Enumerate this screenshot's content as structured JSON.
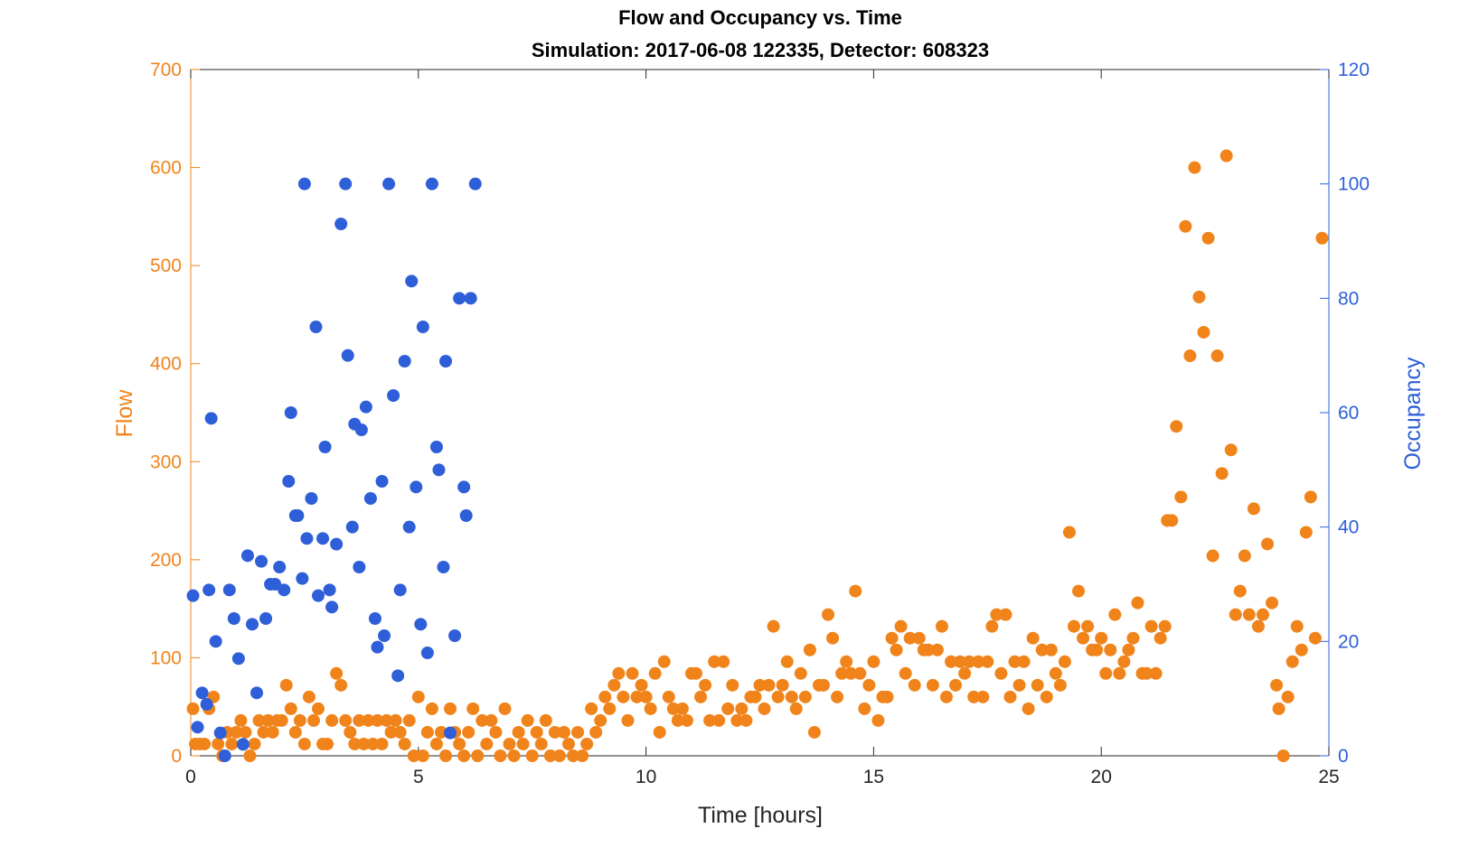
{
  "chart_data": {
    "type": "scatter",
    "title": "Flow and Occupancy vs. Time",
    "subtitle": "Simulation:  2017-06-08 122335,  Detector:  608323",
    "xlabel": "Time [hours]",
    "ylabel_left": "Flow",
    "ylabel_right": "Occupancy",
    "xlim": [
      0,
      25
    ],
    "ylim_left": [
      0,
      700
    ],
    "ylim_right": [
      0,
      120
    ],
    "x_ticks": [
      "0",
      "5",
      "10",
      "15",
      "20",
      "25"
    ],
    "y_left_ticks": [
      "0",
      "100",
      "200",
      "300",
      "400",
      "500",
      "600",
      "700"
    ],
    "y_right_ticks": [
      "0",
      "20",
      "40",
      "60",
      "80",
      "100",
      "120"
    ],
    "grid": false,
    "colors": {
      "flow": "#F0841B",
      "occupancy": "#2E5FD8"
    },
    "series": [
      {
        "axis": "left",
        "points": [
          [
            0.05,
            48
          ],
          [
            0.1,
            12
          ],
          [
            0.2,
            12
          ],
          [
            0.3,
            12
          ],
          [
            0.4,
            48
          ],
          [
            0.5,
            60
          ],
          [
            0.6,
            12
          ],
          [
            0.7,
            0
          ],
          [
            0.8,
            24
          ],
          [
            0.9,
            12
          ],
          [
            1.0,
            24
          ],
          [
            1.1,
            36
          ],
          [
            1.2,
            24
          ],
          [
            1.3,
            0
          ],
          [
            1.4,
            12
          ],
          [
            1.5,
            36
          ],
          [
            1.6,
            24
          ],
          [
            1.7,
            36
          ],
          [
            1.8,
            24
          ],
          [
            1.9,
            36
          ],
          [
            2.0,
            36
          ],
          [
            2.1,
            72
          ],
          [
            2.2,
            48
          ],
          [
            2.3,
            24
          ],
          [
            2.4,
            36
          ],
          [
            2.5,
            12
          ],
          [
            2.6,
            60
          ],
          [
            2.7,
            36
          ],
          [
            2.8,
            48
          ],
          [
            2.9,
            12
          ],
          [
            3.0,
            12
          ],
          [
            3.1,
            36
          ],
          [
            3.2,
            84
          ],
          [
            3.3,
            72
          ],
          [
            3.4,
            36
          ],
          [
            3.5,
            24
          ],
          [
            3.6,
            12
          ],
          [
            3.7,
            36
          ],
          [
            3.8,
            12
          ],
          [
            3.9,
            36
          ],
          [
            4.0,
            12
          ],
          [
            4.1,
            36
          ],
          [
            4.2,
            12
          ],
          [
            4.3,
            36
          ],
          [
            4.4,
            24
          ],
          [
            4.5,
            36
          ],
          [
            4.6,
            24
          ],
          [
            4.7,
            12
          ],
          [
            4.8,
            36
          ],
          [
            4.9,
            0
          ],
          [
            5.0,
            60
          ],
          [
            5.1,
            0
          ],
          [
            5.2,
            24
          ],
          [
            5.3,
            48
          ],
          [
            5.4,
            12
          ],
          [
            5.5,
            24
          ],
          [
            5.6,
            0
          ],
          [
            5.7,
            48
          ],
          [
            5.8,
            24
          ],
          [
            5.9,
            12
          ],
          [
            6.0,
            0
          ],
          [
            6.1,
            24
          ],
          [
            6.2,
            48
          ],
          [
            6.3,
            0
          ],
          [
            6.4,
            36
          ],
          [
            6.5,
            12
          ],
          [
            6.6,
            36
          ],
          [
            6.7,
            24
          ],
          [
            6.8,
            0
          ],
          [
            6.9,
            48
          ],
          [
            7.0,
            12
          ],
          [
            7.1,
            0
          ],
          [
            7.2,
            24
          ],
          [
            7.3,
            12
          ],
          [
            7.4,
            36
          ],
          [
            7.5,
            0
          ],
          [
            7.6,
            24
          ],
          [
            7.7,
            12
          ],
          [
            7.8,
            36
          ],
          [
            7.9,
            0
          ],
          [
            8.0,
            24
          ],
          [
            8.1,
            0
          ],
          [
            8.2,
            24
          ],
          [
            8.3,
            12
          ],
          [
            8.4,
            0
          ],
          [
            8.5,
            24
          ],
          [
            8.6,
            0
          ],
          [
            8.7,
            12
          ],
          [
            8.8,
            48
          ],
          [
            8.9,
            24
          ],
          [
            9.0,
            36
          ],
          [
            9.1,
            60
          ],
          [
            9.2,
            48
          ],
          [
            9.3,
            72
          ],
          [
            9.4,
            84
          ],
          [
            9.5,
            60
          ],
          [
            9.6,
            36
          ],
          [
            9.7,
            84
          ],
          [
            9.8,
            60
          ],
          [
            9.9,
            72
          ],
          [
            10.0,
            60
          ],
          [
            10.1,
            48
          ],
          [
            10.2,
            84
          ],
          [
            10.3,
            24
          ],
          [
            10.4,
            96
          ],
          [
            10.5,
            60
          ],
          [
            10.6,
            48
          ],
          [
            10.7,
            36
          ],
          [
            10.8,
            48
          ],
          [
            10.9,
            36
          ],
          [
            11.0,
            84
          ],
          [
            11.1,
            84
          ],
          [
            11.2,
            60
          ],
          [
            11.3,
            72
          ],
          [
            11.4,
            36
          ],
          [
            11.5,
            96
          ],
          [
            11.6,
            36
          ],
          [
            11.7,
            96
          ],
          [
            11.8,
            48
          ],
          [
            11.9,
            72
          ],
          [
            12.0,
            36
          ],
          [
            12.1,
            48
          ],
          [
            12.2,
            36
          ],
          [
            12.3,
            60
          ],
          [
            12.4,
            60
          ],
          [
            12.5,
            72
          ],
          [
            12.6,
            48
          ],
          [
            12.7,
            72
          ],
          [
            12.8,
            132
          ],
          [
            12.9,
            60
          ],
          [
            13.0,
            72
          ],
          [
            13.1,
            96
          ],
          [
            13.2,
            60
          ],
          [
            13.3,
            48
          ],
          [
            13.4,
            84
          ],
          [
            13.5,
            60
          ],
          [
            13.6,
            108
          ],
          [
            13.7,
            24
          ],
          [
            13.8,
            72
          ],
          [
            13.9,
            72
          ],
          [
            14.0,
            144
          ],
          [
            14.1,
            120
          ],
          [
            14.2,
            60
          ],
          [
            14.3,
            84
          ],
          [
            14.4,
            96
          ],
          [
            14.5,
            84
          ],
          [
            14.6,
            168
          ],
          [
            14.7,
            84
          ],
          [
            14.8,
            48
          ],
          [
            14.9,
            72
          ],
          [
            15.0,
            96
          ],
          [
            15.1,
            36
          ],
          [
            15.2,
            60
          ],
          [
            15.3,
            60
          ],
          [
            15.4,
            120
          ],
          [
            15.5,
            108
          ],
          [
            15.6,
            132
          ],
          [
            15.7,
            84
          ],
          [
            15.8,
            120
          ],
          [
            15.9,
            72
          ],
          [
            16.0,
            120
          ],
          [
            16.1,
            108
          ],
          [
            16.2,
            108
          ],
          [
            16.3,
            72
          ],
          [
            16.4,
            108
          ],
          [
            16.5,
            132
          ],
          [
            16.6,
            60
          ],
          [
            16.7,
            96
          ],
          [
            16.8,
            72
          ],
          [
            16.9,
            96
          ],
          [
            17.0,
            84
          ],
          [
            17.1,
            96
          ],
          [
            17.2,
            60
          ],
          [
            17.3,
            96
          ],
          [
            17.4,
            60
          ],
          [
            17.5,
            96
          ],
          [
            17.6,
            132
          ],
          [
            17.7,
            144
          ],
          [
            17.8,
            84
          ],
          [
            17.9,
            144
          ],
          [
            18.0,
            60
          ],
          [
            18.1,
            96
          ],
          [
            18.2,
            72
          ],
          [
            18.3,
            96
          ],
          [
            18.4,
            48
          ],
          [
            18.5,
            120
          ],
          [
            18.6,
            72
          ],
          [
            18.7,
            108
          ],
          [
            18.8,
            60
          ],
          [
            18.9,
            108
          ],
          [
            19.0,
            84
          ],
          [
            19.1,
            72
          ],
          [
            19.2,
            96
          ],
          [
            19.3,
            228
          ],
          [
            19.4,
            132
          ],
          [
            19.5,
            168
          ],
          [
            19.6,
            120
          ],
          [
            19.7,
            132
          ],
          [
            19.8,
            108
          ],
          [
            19.9,
            108
          ],
          [
            20.0,
            120
          ],
          [
            20.1,
            84
          ],
          [
            20.2,
            108
          ],
          [
            20.3,
            144
          ],
          [
            20.4,
            84
          ],
          [
            20.5,
            96
          ],
          [
            20.6,
            108
          ],
          [
            20.7,
            120
          ],
          [
            20.8,
            156
          ],
          [
            20.9,
            84
          ],
          [
            21.0,
            84
          ],
          [
            21.1,
            132
          ],
          [
            21.2,
            84
          ],
          [
            21.3,
            120
          ],
          [
            21.4,
            132
          ],
          [
            21.45,
            240
          ],
          [
            21.55,
            240
          ],
          [
            21.65,
            336
          ],
          [
            21.75,
            264
          ],
          [
            21.85,
            540
          ],
          [
            21.95,
            408
          ],
          [
            22.05,
            600
          ],
          [
            22.15,
            468
          ],
          [
            22.25,
            432
          ],
          [
            22.35,
            528
          ],
          [
            22.45,
            204
          ],
          [
            22.55,
            408
          ],
          [
            22.65,
            288
          ],
          [
            22.75,
            612
          ],
          [
            22.85,
            312
          ],
          [
            22.95,
            144
          ],
          [
            23.05,
            168
          ],
          [
            23.15,
            204
          ],
          [
            23.25,
            144
          ],
          [
            23.35,
            252
          ],
          [
            23.45,
            132
          ],
          [
            23.55,
            144
          ],
          [
            23.65,
            216
          ],
          [
            23.75,
            156
          ],
          [
            23.85,
            72
          ],
          [
            23.9,
            48
          ],
          [
            24.0,
            0
          ],
          [
            24.1,
            60
          ],
          [
            24.2,
            96
          ],
          [
            24.3,
            132
          ],
          [
            24.4,
            108
          ],
          [
            24.5,
            228
          ],
          [
            24.6,
            264
          ],
          [
            24.7,
            120
          ],
          [
            24.85,
            528
          ]
        ]
      },
      {
        "axis": "right",
        "points": [
          [
            0.05,
            28
          ],
          [
            0.15,
            5
          ],
          [
            0.25,
            11
          ],
          [
            0.35,
            9
          ],
          [
            0.4,
            29
          ],
          [
            0.45,
            59
          ],
          [
            0.55,
            20
          ],
          [
            0.65,
            4
          ],
          [
            0.75,
            0
          ],
          [
            0.85,
            29
          ],
          [
            0.95,
            24
          ],
          [
            1.05,
            17
          ],
          [
            1.15,
            2
          ],
          [
            1.25,
            35
          ],
          [
            1.35,
            23
          ],
          [
            1.45,
            11
          ],
          [
            1.55,
            34
          ],
          [
            1.65,
            24
          ],
          [
            1.75,
            30
          ],
          [
            1.85,
            30
          ],
          [
            1.95,
            33
          ],
          [
            2.05,
            29
          ],
          [
            2.15,
            48
          ],
          [
            2.2,
            60
          ],
          [
            2.3,
            42
          ],
          [
            2.35,
            42
          ],
          [
            2.45,
            31
          ],
          [
            2.5,
            100
          ],
          [
            2.55,
            38
          ],
          [
            2.65,
            45
          ],
          [
            2.75,
            75
          ],
          [
            2.8,
            28
          ],
          [
            2.9,
            38
          ],
          [
            2.95,
            54
          ],
          [
            3.05,
            29
          ],
          [
            3.1,
            26
          ],
          [
            3.2,
            37
          ],
          [
            3.3,
            93
          ],
          [
            3.4,
            100
          ],
          [
            3.45,
            70
          ],
          [
            3.55,
            40
          ],
          [
            3.6,
            58
          ],
          [
            3.7,
            33
          ],
          [
            3.75,
            57
          ],
          [
            3.85,
            61
          ],
          [
            3.95,
            45
          ],
          [
            4.05,
            24
          ],
          [
            4.1,
            19
          ],
          [
            4.2,
            48
          ],
          [
            4.25,
            21
          ],
          [
            4.35,
            100
          ],
          [
            4.45,
            63
          ],
          [
            4.55,
            14
          ],
          [
            4.6,
            29
          ],
          [
            4.7,
            69
          ],
          [
            4.8,
            40
          ],
          [
            4.85,
            83
          ],
          [
            4.95,
            47
          ],
          [
            5.05,
            23
          ],
          [
            5.1,
            75
          ],
          [
            5.2,
            18
          ],
          [
            5.3,
            100
          ],
          [
            5.4,
            54
          ],
          [
            5.45,
            50
          ],
          [
            5.55,
            33
          ],
          [
            5.6,
            69
          ],
          [
            5.7,
            4
          ],
          [
            5.8,
            21
          ],
          [
            5.9,
            80
          ],
          [
            6.0,
            47
          ],
          [
            6.05,
            42
          ],
          [
            6.15,
            80
          ],
          [
            6.25,
            100
          ]
        ]
      }
    ]
  }
}
